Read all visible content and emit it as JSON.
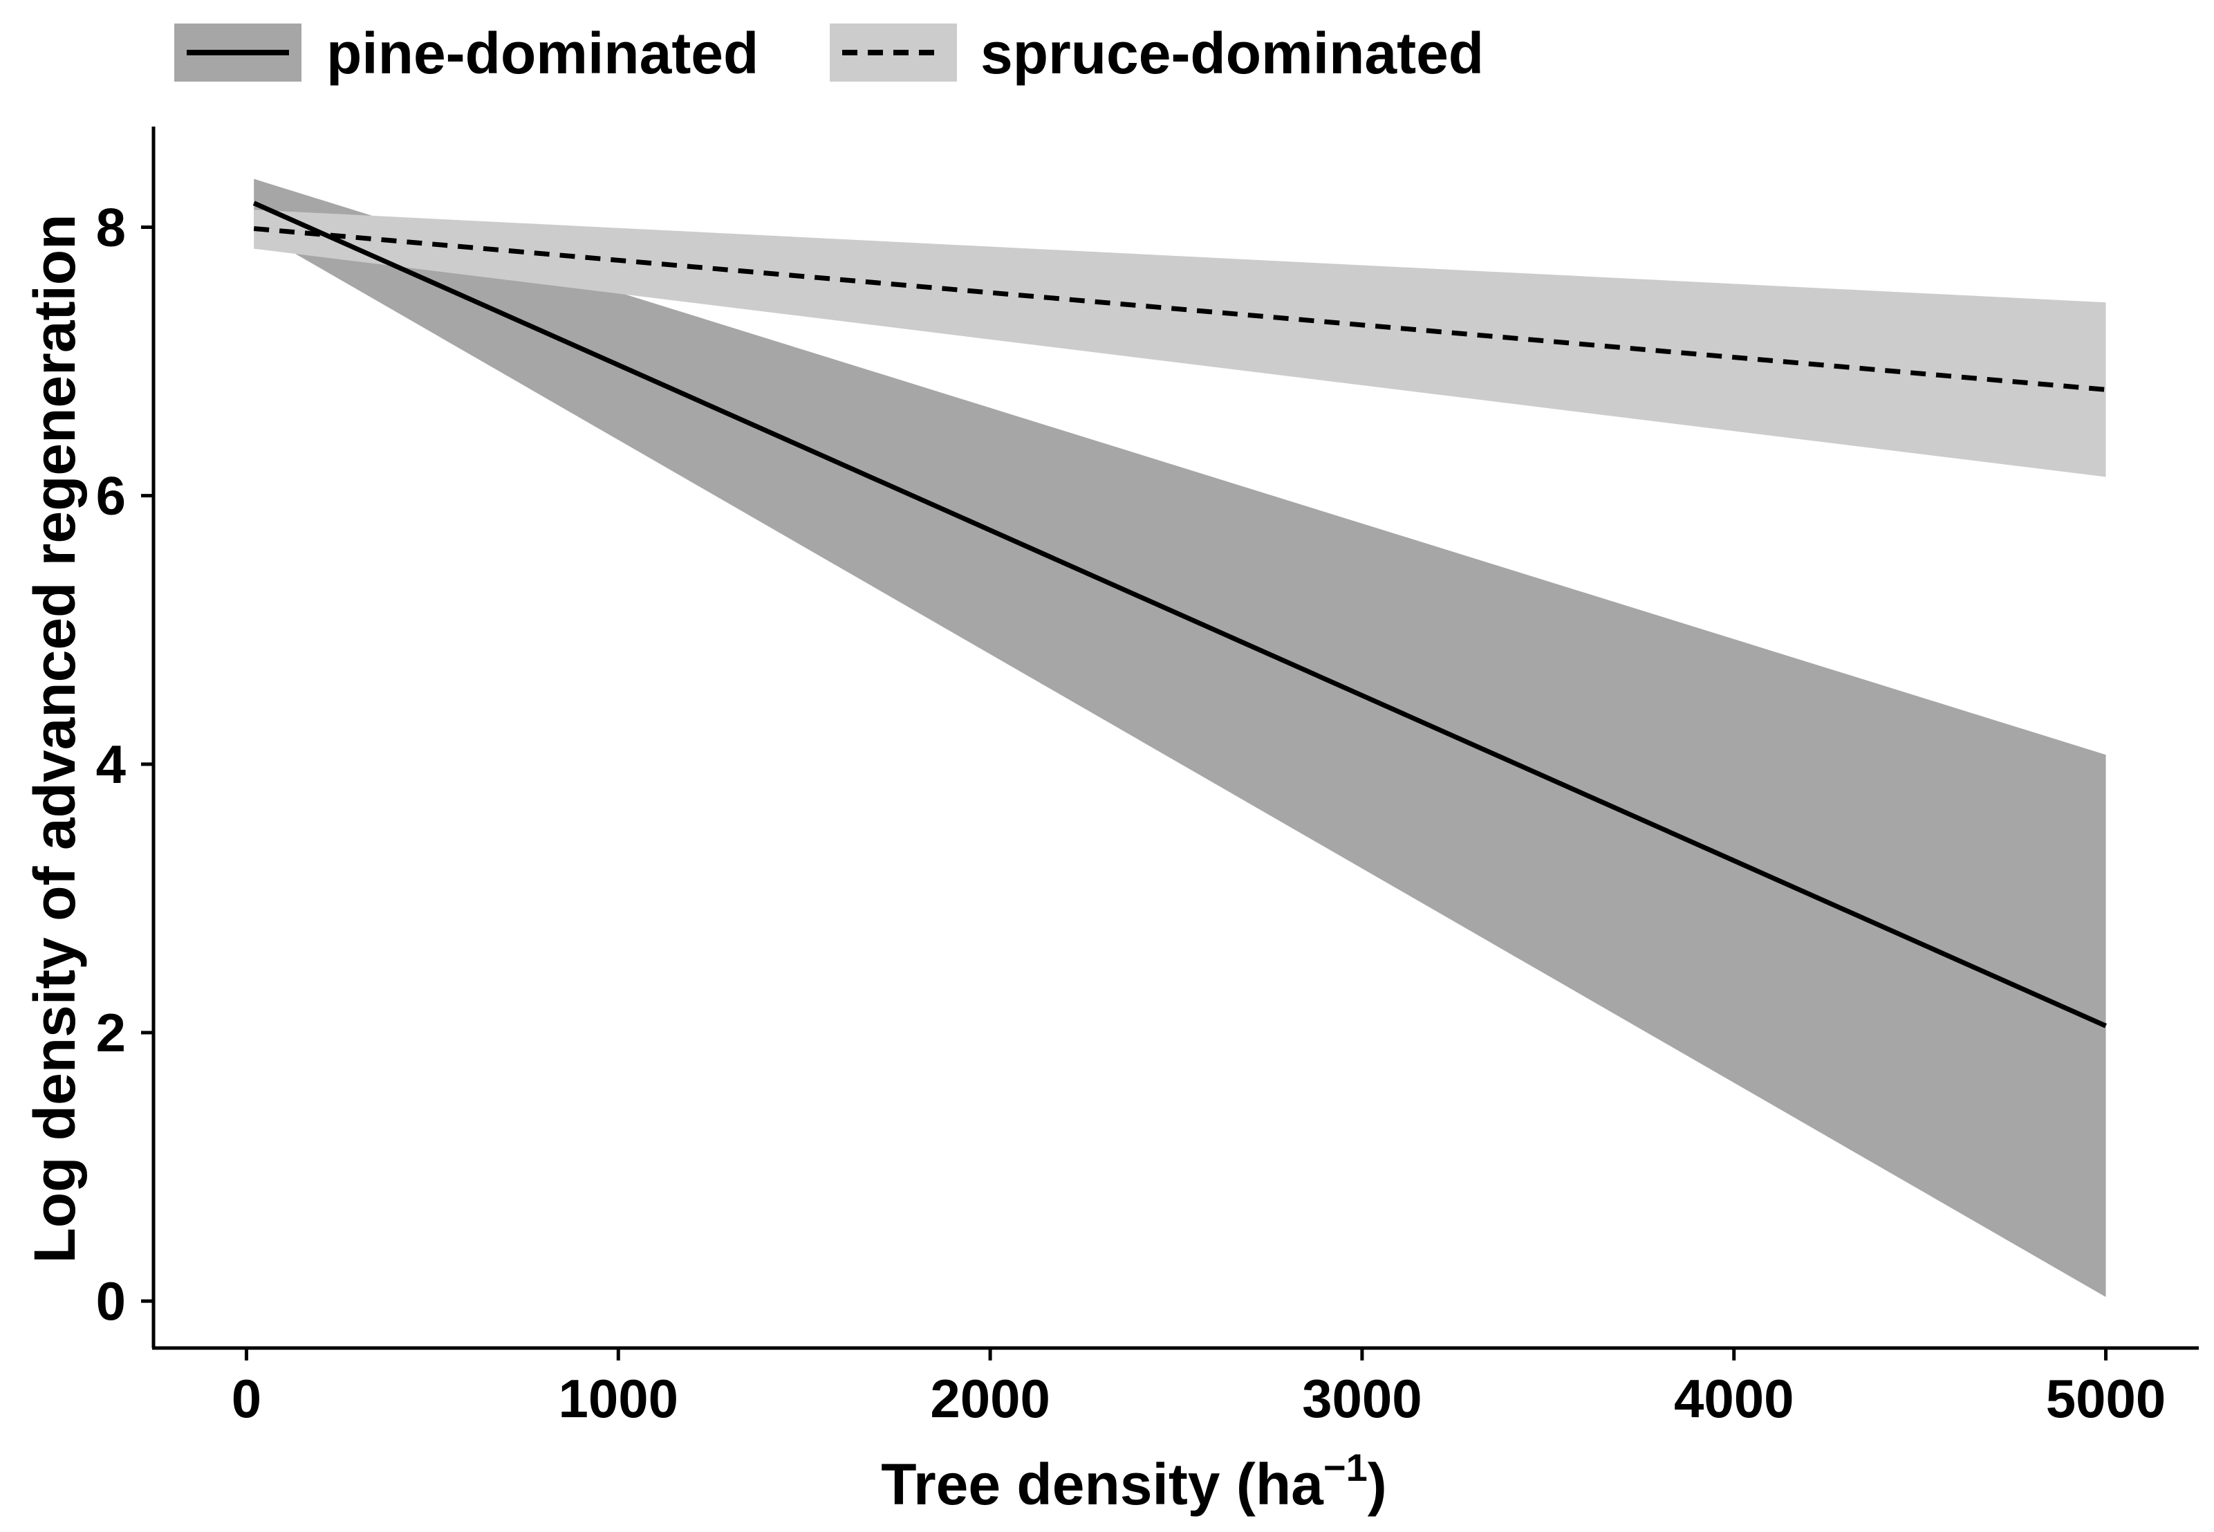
{
  "chart_data": {
    "type": "line",
    "title": "",
    "xlabel": "Tree density (ha",
    "xlabel_superscript": "−1",
    "xlabel_close": ")",
    "ylabel": "Log density of advanced regeneration",
    "xlim": [
      -250,
      5250
    ],
    "ylim": [
      -0.35,
      8.75
    ],
    "x_ticks": [
      0,
      1000,
      2000,
      3000,
      4000,
      5000
    ],
    "x_tick_labels": [
      "0",
      "1000",
      "2000",
      "3000",
      "4000",
      "5000"
    ],
    "y_ticks": [
      0,
      2,
      4,
      6,
      8
    ],
    "y_tick_labels": [
      "0",
      "2",
      "4",
      "6",
      "8"
    ],
    "grid": false,
    "legend_position": "top",
    "series": [
      {
        "name": "pine-dominated",
        "line_style": "solid",
        "line_color": "#000000",
        "band_color": "#a6a6a6",
        "x": [
          20,
          5000
        ],
        "y": [
          8.18,
          2.05
        ],
        "lower": [
          7.98,
          0.03
        ],
        "upper": [
          8.36,
          4.07
        ]
      },
      {
        "name": "spruce-dominated",
        "line_style": "dashed",
        "line_color": "#000000",
        "band_color": "#cccccc",
        "x": [
          20,
          5000
        ],
        "y": [
          7.99,
          6.79
        ],
        "lower": [
          7.84,
          6.14
        ],
        "upper": [
          8.13,
          7.44
        ]
      }
    ]
  }
}
